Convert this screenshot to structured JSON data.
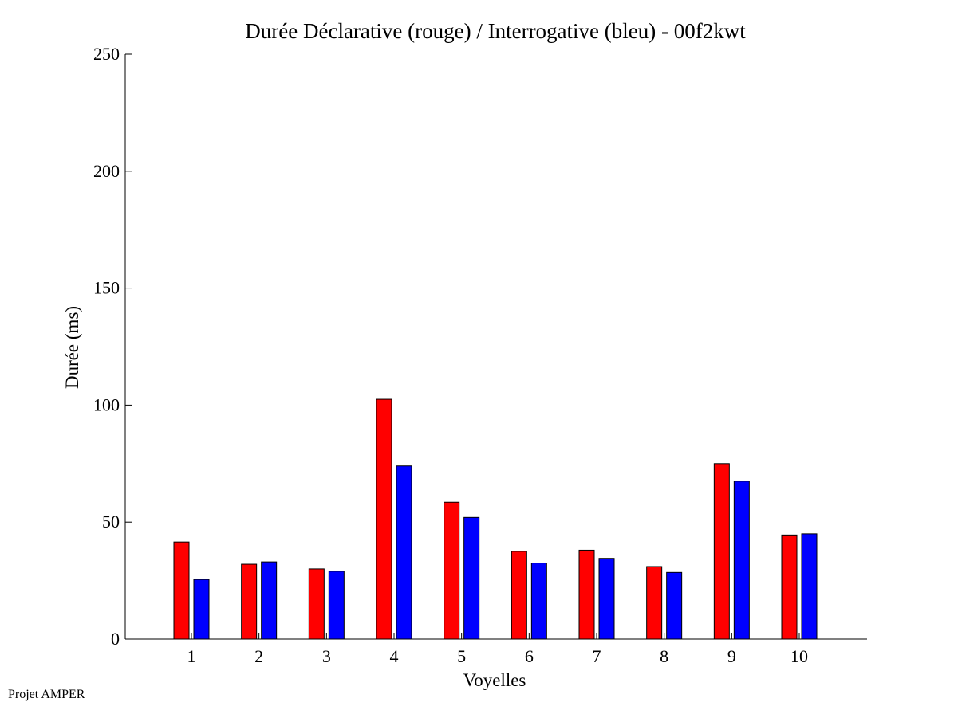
{
  "chart_data": {
    "type": "bar",
    "title": "Durée Déclarative (rouge) / Interrogative (bleu) - 00f2kwt",
    "xlabel": "Voyelles",
    "ylabel": "Durée (ms)",
    "categories": [
      "1",
      "2",
      "3",
      "4",
      "5",
      "6",
      "7",
      "8",
      "9",
      "10"
    ],
    "ylim": [
      0,
      250
    ],
    "yticks": [
      0,
      50,
      100,
      150,
      200,
      250
    ],
    "grid": false,
    "series": [
      {
        "color": "#ff0000",
        "values": [
          41.5,
          32,
          30,
          102.5,
          58.5,
          37.5,
          38,
          31,
          75,
          44.5
        ]
      },
      {
        "color": "#0000ff",
        "values": [
          25.5,
          33,
          29,
          74,
          52,
          32.5,
          34.5,
          28.5,
          67.5,
          45
        ]
      }
    ]
  },
  "footer": {
    "text": "Projet AMPER"
  }
}
